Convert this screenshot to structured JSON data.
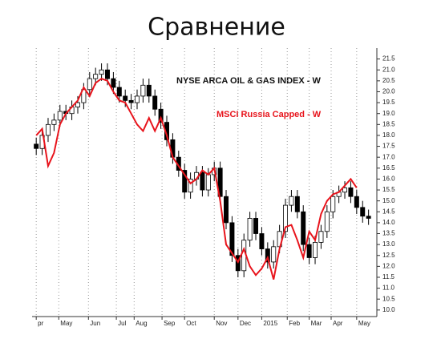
{
  "title": "Сравнение",
  "chart_data": {
    "type": "candlestick",
    "x": [
      0,
      1,
      2,
      3,
      4,
      5,
      6,
      7,
      8,
      9,
      10,
      11,
      12,
      13,
      14,
      15,
      16,
      17,
      18,
      19,
      20,
      21,
      22,
      23,
      24,
      25,
      26,
      27,
      28,
      29,
      30,
      31,
      32,
      33,
      34,
      35,
      36,
      37,
      38,
      39,
      40,
      41,
      42,
      43,
      44,
      45,
      46,
      47,
      48,
      49,
      50,
      51,
      52,
      53,
      54,
      55,
      56
    ],
    "xlim": [
      -0.7,
      57.4
    ],
    "xticks": [
      {
        "value": 0,
        "label": "pr"
      },
      {
        "value": 3.8,
        "label": "May"
      },
      {
        "value": 8.8,
        "label": "Jun"
      },
      {
        "value": 13.5,
        "label": "Jul"
      },
      {
        "value": 16.5,
        "label": "Aug"
      },
      {
        "value": 21.2,
        "label": "Sep"
      },
      {
        "value": 25,
        "label": "Oct"
      },
      {
        "value": 30,
        "label": "Nov"
      },
      {
        "value": 34,
        "label": "Dec"
      },
      {
        "value": 38,
        "label": "2015"
      },
      {
        "value": 42.3,
        "label": "Feb"
      },
      {
        "value": 46,
        "label": "Mar"
      },
      {
        "value": 49.7,
        "label": "Apr"
      },
      {
        "value": 54,
        "label": "May"
      }
    ],
    "ylim": [
      9.7,
      22.0
    ],
    "yticks": [
      {
        "value": 10,
        "label": "10.0"
      },
      10.5,
      {
        "value": 11,
        "label": "11.0"
      },
      11.5,
      {
        "value": 12,
        "label": "12.0"
      },
      12.5,
      {
        "value": 13,
        "label": "13.0"
      },
      13.5,
      {
        "value": 14,
        "label": "14.0"
      },
      14.5,
      {
        "value": 15,
        "label": "15.0"
      },
      15.5,
      {
        "value": 16,
        "label": "16.0"
      },
      16.5,
      {
        "value": 17,
        "label": "17.0"
      },
      17.5,
      {
        "value": 18,
        "label": "18.0"
      },
      18.5,
      {
        "value": 19,
        "label": "19.0"
      },
      19.5,
      {
        "value": 20,
        "label": "20.0"
      },
      20.5,
      {
        "value": 21,
        "label": "21.0"
      },
      21.5
    ],
    "grid": true,
    "up_color": "#ffffff",
    "down_color": "#000000",
    "series": [
      {
        "name": "NYSE ARCA OIL & GAS INDEX - W",
        "color": "#000000",
        "open": [
          17.6,
          17.4,
          18.0,
          18.5,
          18.7,
          19.1,
          19.0,
          19.3,
          19.5,
          20.1,
          20.6,
          20.8,
          21.0,
          20.6,
          20.2,
          19.8,
          19.6,
          19.5,
          19.8,
          20.3,
          19.8,
          19.2,
          18.6,
          17.8,
          17.0,
          16.4,
          15.4,
          16.0,
          16.3,
          15.5,
          16.2,
          16.5,
          15.2,
          14.0,
          12.5,
          11.8,
          13.2,
          14.2,
          13.5,
          12.8,
          12.2,
          12.9,
          13.6,
          14.8,
          15.2,
          14.5,
          13.0,
          12.4,
          13.1,
          13.6,
          14.5,
          15.2,
          15.4,
          15.6,
          15.2,
          14.7,
          14.3
        ],
        "high": [
          17.9,
          18.3,
          18.8,
          19.0,
          19.4,
          19.4,
          19.6,
          19.8,
          20.4,
          20.9,
          21.1,
          21.3,
          21.3,
          20.9,
          20.5,
          20.1,
          19.9,
          20.1,
          20.6,
          20.6,
          20.1,
          19.5,
          18.9,
          18.1,
          17.3,
          16.7,
          16.3,
          16.6,
          16.6,
          16.5,
          16.8,
          16.8,
          15.5,
          14.3,
          12.8,
          13.5,
          14.5,
          14.5,
          13.8,
          13.1,
          13.2,
          13.9,
          15.1,
          15.5,
          15.5,
          14.8,
          13.3,
          13.4,
          13.9,
          14.8,
          15.5,
          15.7,
          15.9,
          15.9,
          15.5,
          15.0,
          14.6
        ],
        "low": [
          17.1,
          17.1,
          17.7,
          18.2,
          18.4,
          18.7,
          18.7,
          19.0,
          19.2,
          19.8,
          20.3,
          20.5,
          20.3,
          19.9,
          19.5,
          19.3,
          19.2,
          19.2,
          19.5,
          19.5,
          18.9,
          18.3,
          17.5,
          16.7,
          16.1,
          15.1,
          15.1,
          15.7,
          15.2,
          15.2,
          15.9,
          14.9,
          13.7,
          12.2,
          11.5,
          11.5,
          12.9,
          13.2,
          12.5,
          11.9,
          11.9,
          12.6,
          13.3,
          14.5,
          14.2,
          12.7,
          12.1,
          12.1,
          12.8,
          13.3,
          14.2,
          14.9,
          15.1,
          14.9,
          14.4,
          14.0,
          13.9
        ],
        "close": [
          17.4,
          18.0,
          18.5,
          18.7,
          19.1,
          19.0,
          19.3,
          19.5,
          20.1,
          20.6,
          20.8,
          21.0,
          20.6,
          20.2,
          19.8,
          19.6,
          19.5,
          19.8,
          20.3,
          19.8,
          19.2,
          18.6,
          17.8,
          17.0,
          16.4,
          15.4,
          16.0,
          16.3,
          15.5,
          16.2,
          16.5,
          15.2,
          14.0,
          12.5,
          11.8,
          13.2,
          14.2,
          13.5,
          12.8,
          12.2,
          12.9,
          13.6,
          14.8,
          15.2,
          14.5,
          13.0,
          12.4,
          13.1,
          13.6,
          14.5,
          15.2,
          15.4,
          15.6,
          15.2,
          14.7,
          14.3,
          14.2
        ]
      },
      {
        "name": "MSCI Russia Capped - W",
        "color": "#e8141c",
        "values": [
          18.0,
          18.3,
          16.6,
          17.2,
          18.5,
          19.0,
          19.3,
          19.6,
          20.2,
          19.8,
          20.4,
          20.6,
          20.5,
          20.0,
          19.6,
          19.5,
          19.0,
          18.5,
          18.2,
          18.8,
          18.2,
          18.8,
          18.0,
          17.0,
          16.6,
          16.2,
          15.8,
          16.0,
          16.4,
          16.2,
          16.5,
          15.0,
          13.0,
          12.6,
          12.2,
          12.8,
          12.0,
          11.6,
          11.9,
          12.4,
          11.4,
          12.8,
          13.8,
          13.9,
          13.2,
          12.4,
          13.6,
          13.2,
          14.4,
          15.0,
          15.3,
          15.4,
          15.7,
          16.0,
          15.6,
          null,
          null
        ]
      }
    ]
  }
}
